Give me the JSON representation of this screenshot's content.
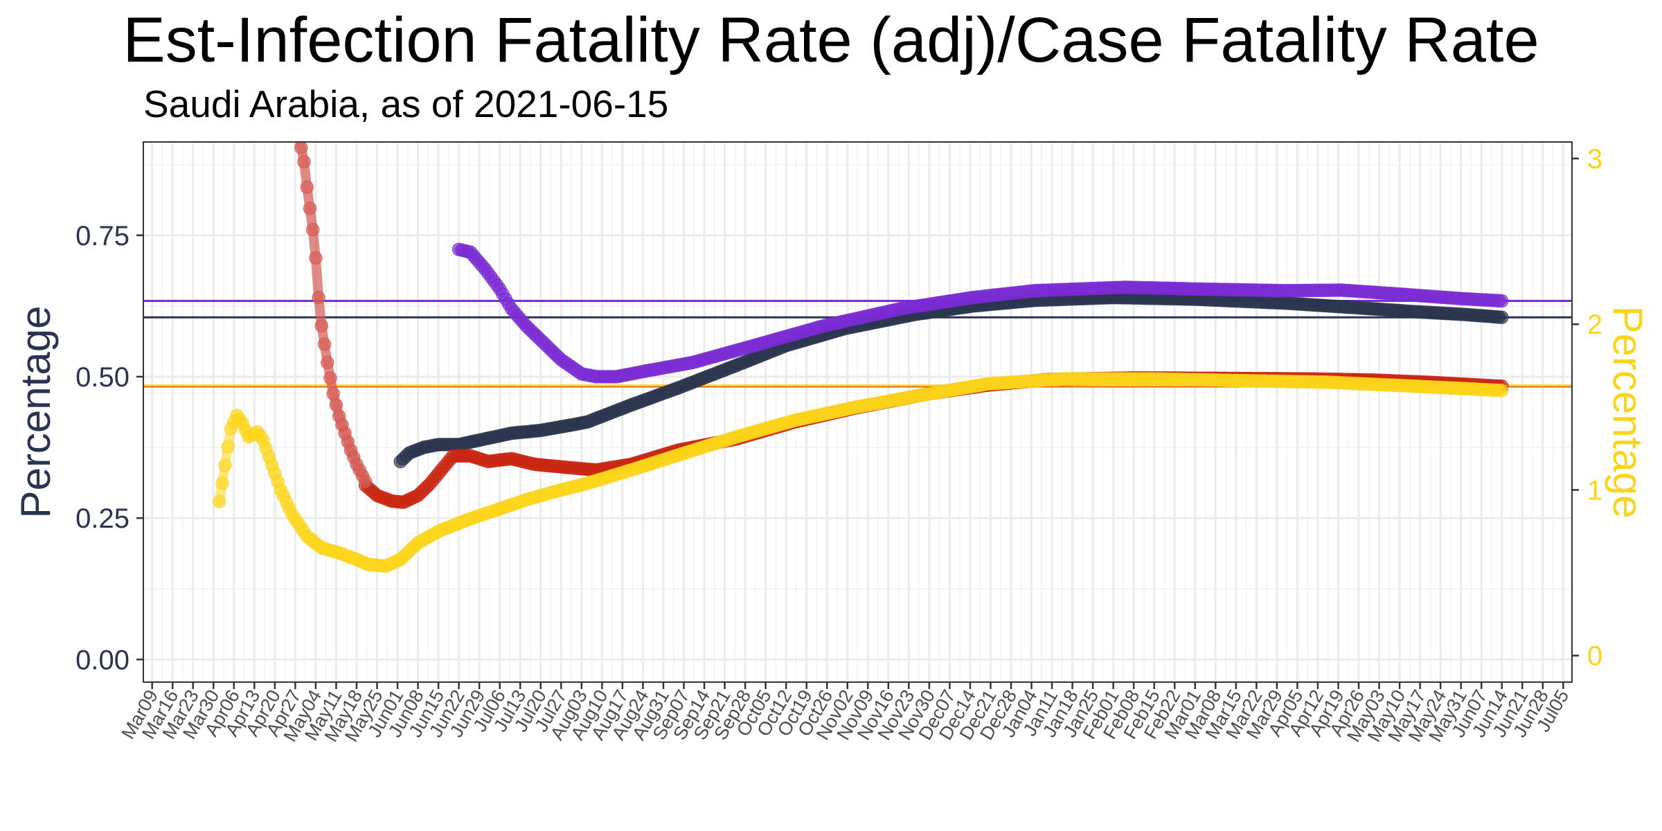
{
  "chart_data": {
    "type": "line",
    "title": "Est-Infection Fatality Rate (adj)/Case Fatality Rate",
    "subtitle": "Saudi Arabia, as of 2021-06-15",
    "ylabel_left": "Percentage",
    "ylabel_right": "Percentage",
    "xlabel": "",
    "x_range": [
      "2020-03-06",
      "2021-07-08"
    ],
    "ylim_left": [
      -0.04,
      0.915
    ],
    "ylim_right": [
      -0.16,
      3.1
    ],
    "yticks_left": [
      "0.00",
      "0.25",
      "0.50",
      "0.75"
    ],
    "yticks_right": [
      "0",
      "1",
      "2",
      "3"
    ],
    "x_tick_labels": [
      "Mar09",
      "Mar16",
      "Mar23",
      "Mar30",
      "Apr06",
      "Apr13",
      "Apr20",
      "Apr27",
      "May04",
      "May11",
      "May18",
      "May25",
      "Jun01",
      "Jun08",
      "Jun15",
      "Jun22",
      "Jun29",
      "Jul06",
      "Jul13",
      "Jul20",
      "Jul27",
      "Aug03",
      "Aug10",
      "Aug17",
      "Aug24",
      "Aug31",
      "Sep07",
      "Sep14",
      "Sep21",
      "Sep28",
      "Oct05",
      "Oct12",
      "Oct19",
      "Oct26",
      "Nov02",
      "Nov09",
      "Nov16",
      "Nov23",
      "Nov30",
      "Dec07",
      "Dec14",
      "Dec21",
      "Dec28",
      "Jan04",
      "Jan11",
      "Jan18",
      "Jan25",
      "Feb01",
      "Feb08",
      "Feb15",
      "Feb22",
      "Mar01",
      "Mar08",
      "Mar15",
      "Mar22",
      "Mar29",
      "Apr05",
      "Apr12",
      "Apr19",
      "Apr26",
      "May03",
      "May10",
      "May17",
      "May24",
      "May31",
      "Jun07",
      "Jun14",
      "Jun21",
      "Jun28",
      "Jul05"
    ],
    "grid": true,
    "colors": {
      "navy": "#2a344e",
      "purple": "#7a2bd3",
      "red": "#c92612",
      "yellow": "#fbd51b",
      "red_early": "#d35a52",
      "right_axis": "#fbd51b",
      "left_axis": "#2a344e"
    },
    "hlines": [
      {
        "axis": "left",
        "value": 0.634,
        "color": "#7a2bd3"
      },
      {
        "axis": "left",
        "value": 0.605,
        "color": "#2a344e"
      },
      {
        "axis": "left",
        "value": 0.483,
        "color": "#c92612"
      },
      {
        "axis": "right",
        "value": 1.63,
        "color": "#fbd51b"
      }
    ],
    "series": [
      {
        "axis": "left",
        "color": "#2a344e",
        "points": [
          [
            "2020-06-02",
            0.35
          ],
          [
            "2020-06-05",
            0.365
          ],
          [
            "2020-06-10",
            0.375
          ],
          [
            "2020-06-15",
            0.38
          ],
          [
            "2020-06-22",
            0.38
          ],
          [
            "2020-07-01",
            0.39
          ],
          [
            "2020-07-10",
            0.4
          ],
          [
            "2020-07-20",
            0.405
          ],
          [
            "2020-07-31",
            0.415
          ],
          [
            "2020-08-05",
            0.42
          ],
          [
            "2020-08-20",
            0.45
          ],
          [
            "2020-09-05",
            0.48
          ],
          [
            "2020-09-25",
            0.52
          ],
          [
            "2020-10-12",
            0.555
          ],
          [
            "2020-11-01",
            0.585
          ],
          [
            "2020-11-25",
            0.61
          ],
          [
            "2020-12-15",
            0.625
          ],
          [
            "2021-01-05",
            0.635
          ],
          [
            "2021-02-01",
            0.64
          ],
          [
            "2021-03-01",
            0.637
          ],
          [
            "2021-04-01",
            0.63
          ],
          [
            "2021-04-25",
            0.622
          ],
          [
            "2021-05-15",
            0.615
          ],
          [
            "2021-06-01",
            0.61
          ],
          [
            "2021-06-14",
            0.605
          ]
        ]
      },
      {
        "axis": "left",
        "color": "#7a2bd3",
        "points": [
          [
            "2020-06-22",
            0.725
          ],
          [
            "2020-06-26",
            0.72
          ],
          [
            "2020-07-01",
            0.69
          ],
          [
            "2020-07-06",
            0.655
          ],
          [
            "2020-07-10",
            0.62
          ],
          [
            "2020-07-15",
            0.59
          ],
          [
            "2020-07-20",
            0.565
          ],
          [
            "2020-07-27",
            0.53
          ],
          [
            "2020-08-03",
            0.505
          ],
          [
            "2020-08-08",
            0.5
          ],
          [
            "2020-08-15",
            0.5
          ],
          [
            "2020-08-25",
            0.51
          ],
          [
            "2020-09-10",
            0.525
          ],
          [
            "2020-10-01",
            0.555
          ],
          [
            "2020-10-25",
            0.59
          ],
          [
            "2020-11-20",
            0.62
          ],
          [
            "2020-12-15",
            0.64
          ],
          [
            "2021-01-05",
            0.652
          ],
          [
            "2021-02-05",
            0.658
          ],
          [
            "2021-03-01",
            0.655
          ],
          [
            "2021-04-01",
            0.652
          ],
          [
            "2021-04-20",
            0.653
          ],
          [
            "2021-05-10",
            0.646
          ],
          [
            "2021-05-31",
            0.638
          ],
          [
            "2021-06-14",
            0.634
          ]
        ]
      },
      {
        "axis": "left",
        "color": "#c92612",
        "points": [
          [
            "2020-05-21",
            0.308
          ],
          [
            "2020-05-25",
            0.29
          ],
          [
            "2020-05-30",
            0.28
          ],
          [
            "2020-06-03",
            0.278
          ],
          [
            "2020-06-08",
            0.29
          ],
          [
            "2020-06-12",
            0.31
          ],
          [
            "2020-06-16",
            0.335
          ],
          [
            "2020-06-20",
            0.36
          ],
          [
            "2020-06-26",
            0.36
          ],
          [
            "2020-07-02",
            0.35
          ],
          [
            "2020-07-10",
            0.355
          ],
          [
            "2020-07-18",
            0.345
          ],
          [
            "2020-07-28",
            0.34
          ],
          [
            "2020-08-08",
            0.335
          ],
          [
            "2020-08-20",
            0.345
          ],
          [
            "2020-09-05",
            0.37
          ],
          [
            "2020-09-25",
            0.39
          ],
          [
            "2020-10-15",
            0.42
          ],
          [
            "2020-11-05",
            0.445
          ],
          [
            "2020-11-30",
            0.47
          ],
          [
            "2020-12-20",
            0.485
          ],
          [
            "2021-01-10",
            0.495
          ],
          [
            "2021-02-10",
            0.498
          ],
          [
            "2021-03-10",
            0.497
          ],
          [
            "2021-04-10",
            0.496
          ],
          [
            "2021-05-01",
            0.494
          ],
          [
            "2021-05-20",
            0.49
          ],
          [
            "2021-06-14",
            0.483
          ]
        ]
      },
      {
        "axis": "left",
        "color": "#d35a52",
        "faded": true,
        "points": [
          [
            "2020-04-28",
            0.93
          ],
          [
            "2020-04-30",
            0.88
          ],
          [
            "2020-05-01",
            0.835
          ],
          [
            "2020-05-03",
            0.76
          ],
          [
            "2020-05-04",
            0.71
          ],
          [
            "2020-05-05",
            0.64
          ],
          [
            "2020-05-06",
            0.59
          ],
          [
            "2020-05-08",
            0.525
          ],
          [
            "2020-05-10",
            0.47
          ],
          [
            "2020-05-12",
            0.43
          ],
          [
            "2020-05-14",
            0.4
          ],
          [
            "2020-05-16",
            0.37
          ],
          [
            "2020-05-18",
            0.345
          ],
          [
            "2020-05-21",
            0.315
          ]
        ]
      },
      {
        "axis": "right",
        "color": "#fbd51b",
        "points": [
          [
            "2020-04-01",
            0.93
          ],
          [
            "2020-04-03",
            1.15
          ],
          [
            "2020-04-05",
            1.37
          ],
          [
            "2020-04-07",
            1.45
          ],
          [
            "2020-04-09",
            1.4
          ],
          [
            "2020-04-11",
            1.32
          ],
          [
            "2020-04-14",
            1.35
          ],
          [
            "2020-04-16",
            1.3
          ],
          [
            "2020-04-19",
            1.15
          ],
          [
            "2020-04-22",
            1.0
          ],
          [
            "2020-04-26",
            0.85
          ],
          [
            "2020-05-01",
            0.72
          ],
          [
            "2020-05-06",
            0.65
          ],
          [
            "2020-05-12",
            0.62
          ],
          [
            "2020-05-18",
            0.58
          ],
          [
            "2020-05-22",
            0.55
          ],
          [
            "2020-05-28",
            0.54
          ],
          [
            "2020-06-02",
            0.58
          ],
          [
            "2020-06-08",
            0.68
          ],
          [
            "2020-06-15",
            0.75
          ],
          [
            "2020-06-25",
            0.82
          ],
          [
            "2020-07-05",
            0.88
          ],
          [
            "2020-07-15",
            0.94
          ],
          [
            "2020-07-25",
            0.99
          ],
          [
            "2020-08-05",
            1.04
          ],
          [
            "2020-08-20",
            1.12
          ],
          [
            "2020-09-05",
            1.21
          ],
          [
            "2020-09-25",
            1.32
          ],
          [
            "2020-10-15",
            1.42
          ],
          [
            "2020-11-05",
            1.5
          ],
          [
            "2020-11-30",
            1.58
          ],
          [
            "2020-12-20",
            1.64
          ],
          [
            "2021-01-15",
            1.67
          ],
          [
            "2021-02-15",
            1.67
          ],
          [
            "2021-03-15",
            1.66
          ],
          [
            "2021-04-15",
            1.65
          ],
          [
            "2021-05-10",
            1.63
          ],
          [
            "2021-06-14",
            1.6
          ]
        ]
      }
    ]
  }
}
